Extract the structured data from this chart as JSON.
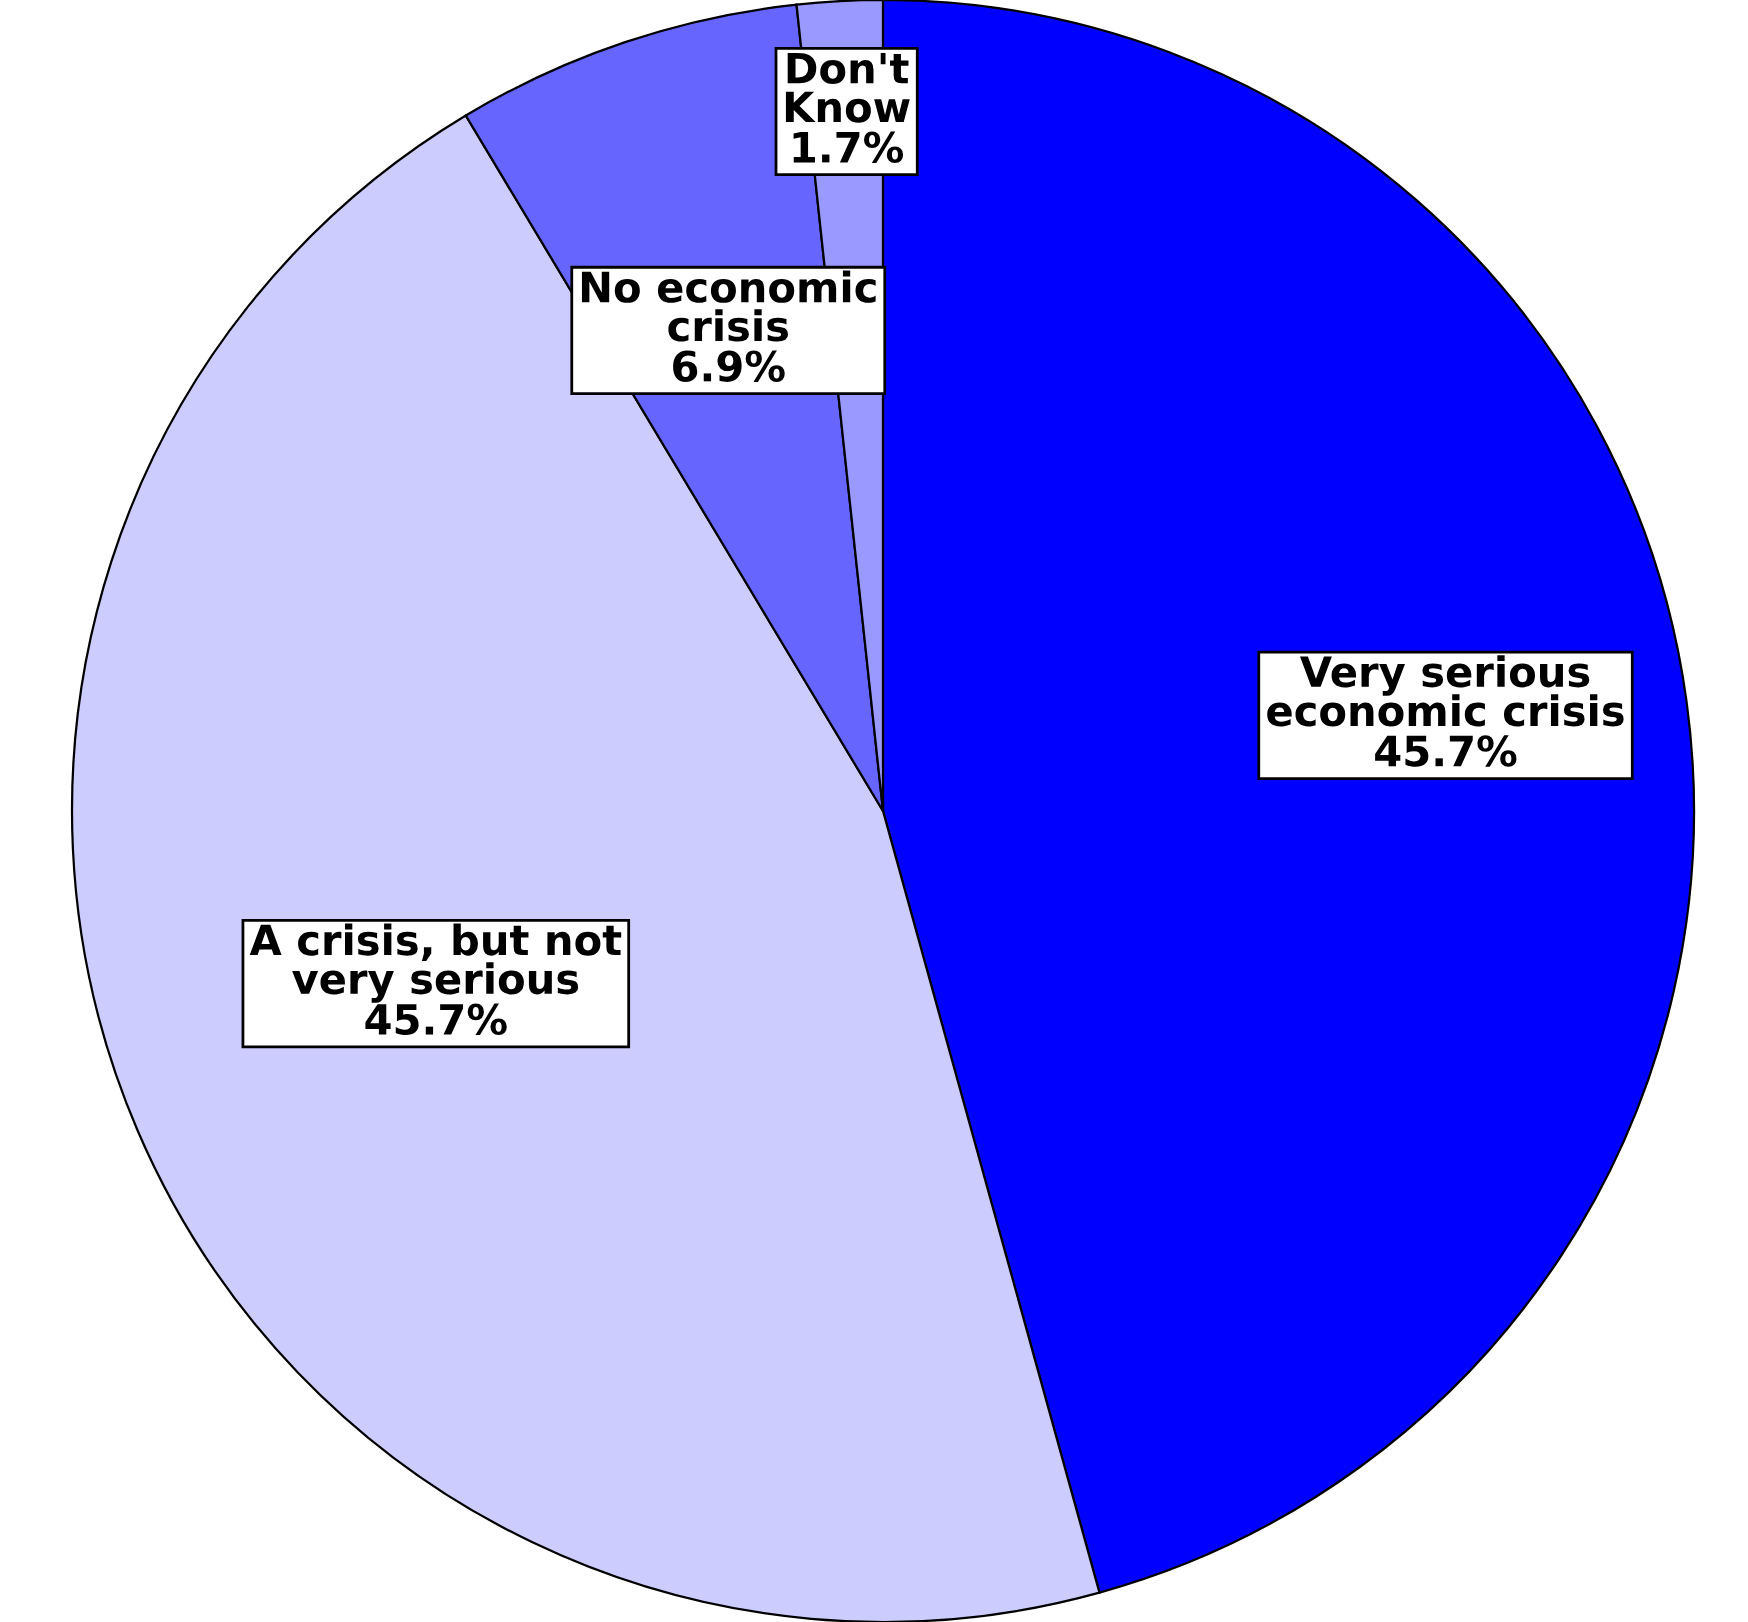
{
  "chart_data": {
    "type": "pie",
    "categories": [
      "Very serious\neconomic crisis",
      "A crisis, but not\nvery serious",
      "No economic\ncrisis",
      "Don't\nKnow"
    ],
    "values": [
      45.7,
      45.7,
      6.9,
      1.7
    ],
    "colors": [
      "#0000ff",
      "#ccccff",
      "#6666ff",
      "#9999ff"
    ],
    "value_labels": [
      "45.7%",
      "45.7%",
      "6.9%",
      "1.7%"
    ],
    "legend": false
  }
}
